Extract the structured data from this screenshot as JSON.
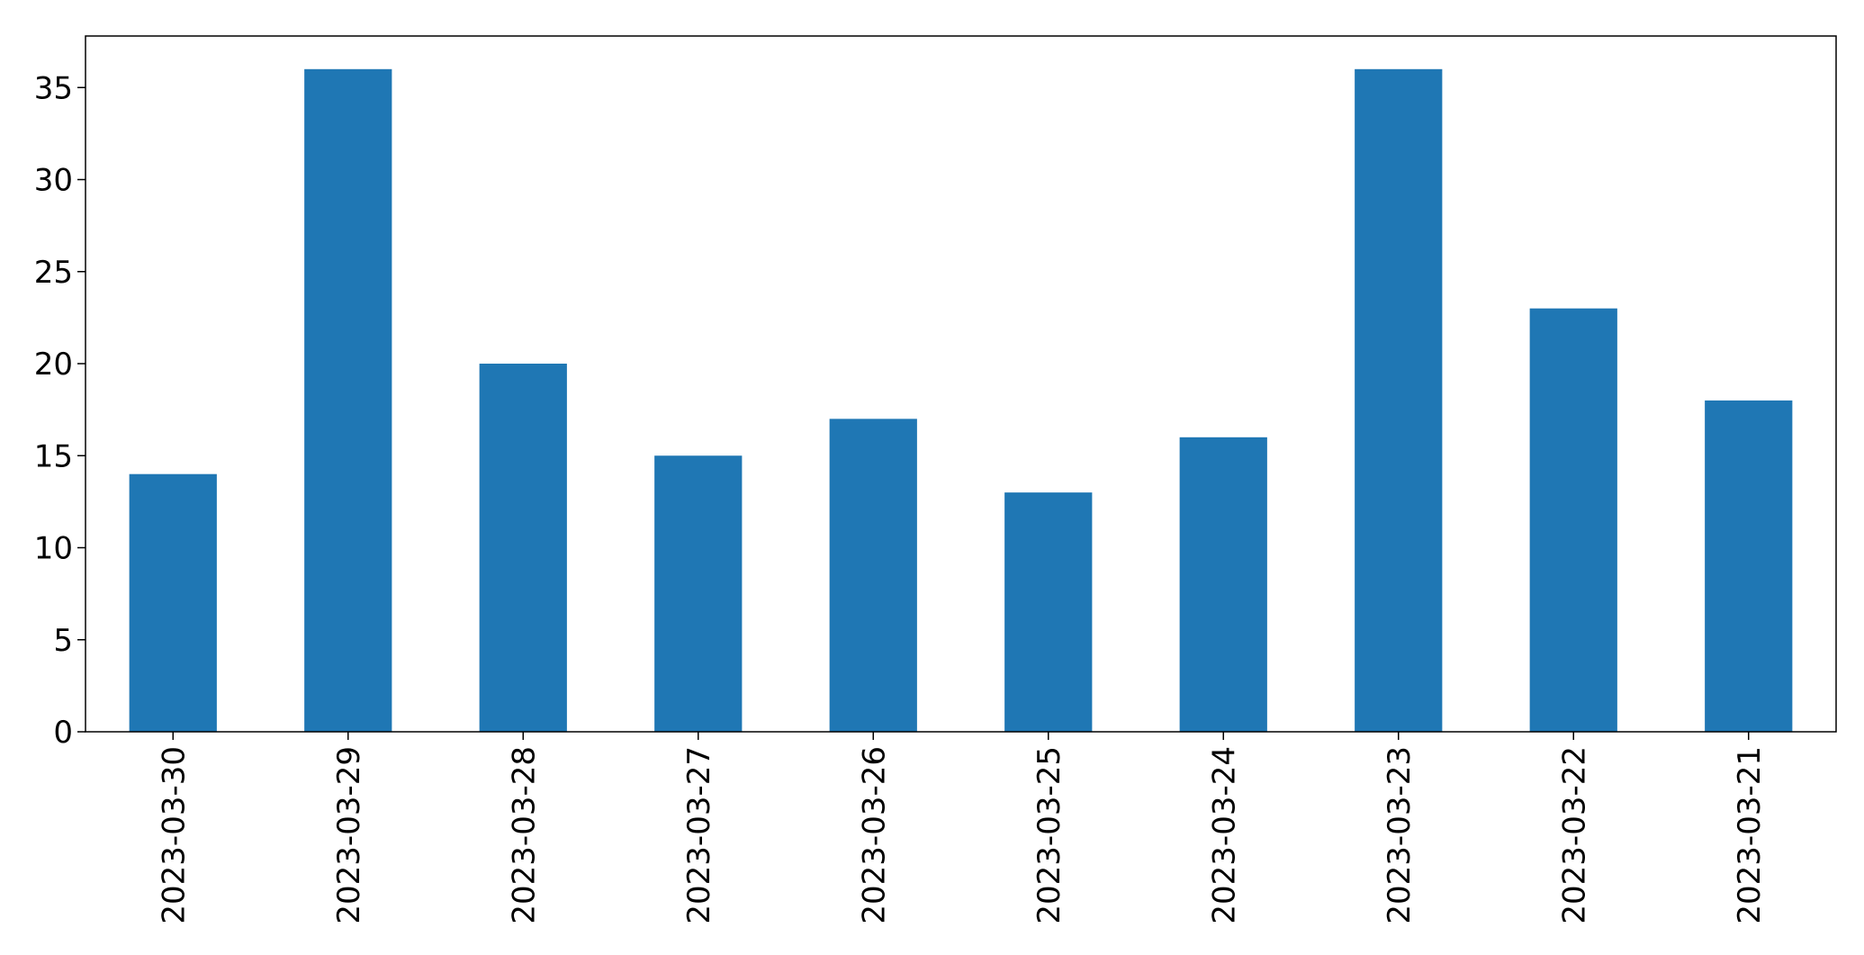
{
  "chart_data": {
    "type": "bar",
    "title": "",
    "xlabel": "",
    "ylabel": "",
    "categories": [
      "2023-03-30",
      "2023-03-29",
      "2023-03-28",
      "2023-03-27",
      "2023-03-26",
      "2023-03-25",
      "2023-03-24",
      "2023-03-23",
      "2023-03-22",
      "2023-03-21"
    ],
    "values": [
      14,
      36,
      20,
      15,
      17,
      13,
      16,
      36,
      23,
      18
    ],
    "ylim": [
      0,
      37.8
    ],
    "yticks": [
      0,
      5,
      10,
      15,
      20,
      25,
      30,
      35
    ],
    "grid": false,
    "legend": "none",
    "bar_color": "#1f77b4",
    "x_tick_rotation": "vertical"
  }
}
